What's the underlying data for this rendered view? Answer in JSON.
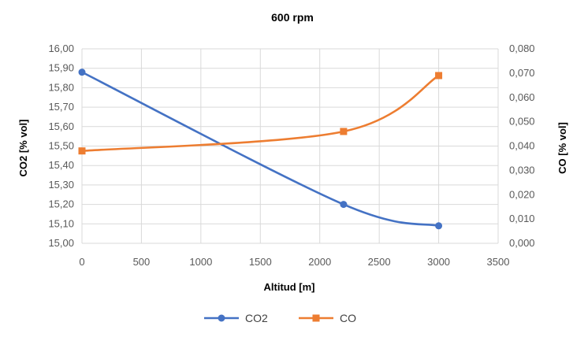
{
  "chart_data": {
    "type": "line",
    "title": "600 rpm",
    "xlabel": "Altitud [m]",
    "ylabel": "CO2 [% vol]",
    "y2label": "CO [% vol]",
    "x_ticks": [
      "0",
      "500",
      "1000",
      "1500",
      "2000",
      "2500",
      "3000",
      "3500"
    ],
    "xlim": [
      0,
      3500
    ],
    "ylim": [
      15.0,
      16.0
    ],
    "y_ticks": [
      "15,00",
      "15,10",
      "15,20",
      "15,30",
      "15,40",
      "15,50",
      "15,60",
      "15,70",
      "15,80",
      "15,90",
      "16,00"
    ],
    "y2lim": [
      0.0,
      0.08
    ],
    "y2_ticks": [
      "0,000",
      "0,010",
      "0,020",
      "0,030",
      "0,040",
      "0,050",
      "0,060",
      "0,070",
      "0,080"
    ],
    "grid": true,
    "legend_position": "bottom",
    "series": [
      {
        "name": "CO2",
        "axis": "left",
        "color": "#4472C4",
        "marker": "circle",
        "x": [
          0,
          2200,
          3000
        ],
        "y": [
          15.88,
          15.2,
          15.09
        ]
      },
      {
        "name": "CO",
        "axis": "right",
        "color": "#ED7D31",
        "marker": "square",
        "x": [
          0,
          2200,
          3000
        ],
        "y": [
          0.038,
          0.046,
          0.069
        ]
      }
    ]
  }
}
